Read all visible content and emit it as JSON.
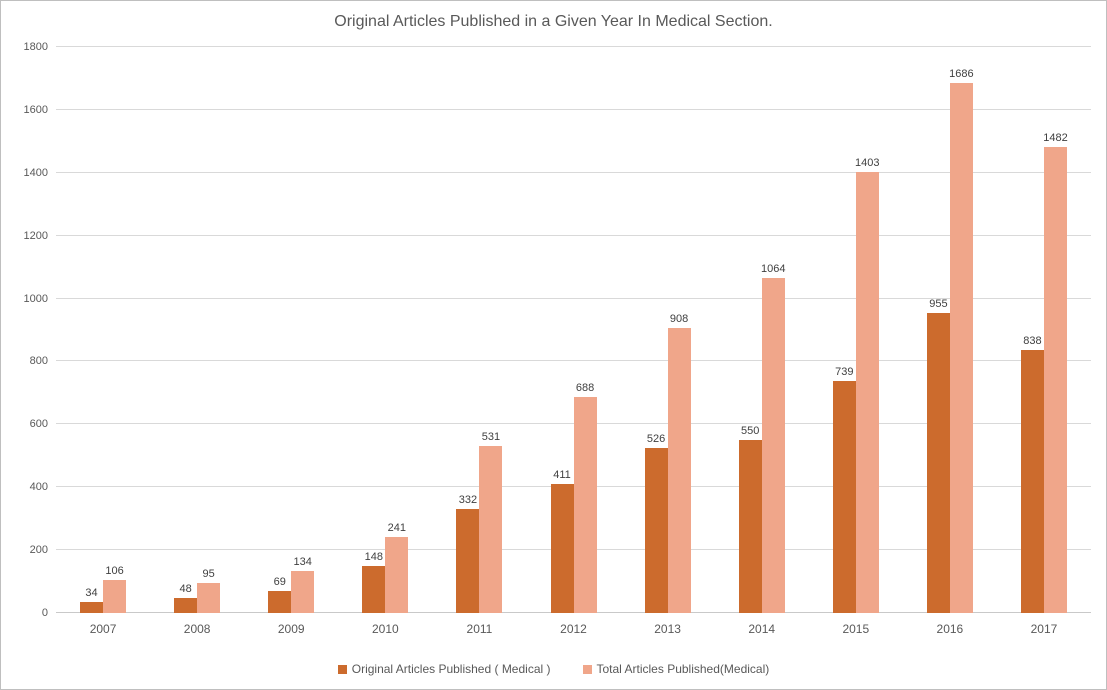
{
  "chart_data": {
    "type": "bar",
    "title": "Original Articles Published in a Given Year In Medical Section.",
    "categories": [
      "2007",
      "2008",
      "2009",
      "2010",
      "2011",
      "2012",
      "2013",
      "2014",
      "2015",
      "2016",
      "2017"
    ],
    "series": [
      {
        "name": "Original Articles Published ( Medical )",
        "color": "#cc6b2d",
        "values": [
          34,
          48,
          69,
          148,
          332,
          411,
          526,
          550,
          739,
          955,
          838
        ]
      },
      {
        "name": "Total Articles Published(Medical)",
        "color": "#f0a68a",
        "values": [
          106,
          95,
          134,
          241,
          531,
          688,
          908,
          1064,
          1403,
          1686,
          1482
        ]
      }
    ],
    "xlabel": "",
    "ylabel": "",
    "ylim": [
      0,
      1800
    ],
    "ytick_step": 200,
    "grid": true,
    "legend_position": "bottom",
    "data_labels": true
  }
}
